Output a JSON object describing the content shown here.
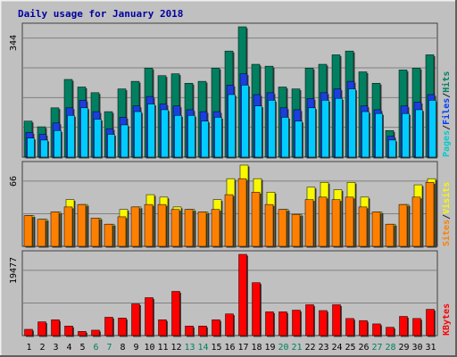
{
  "chart_data": [
    {
      "type": "bar",
      "title": "Daily usage for January 2018",
      "panel": "hits",
      "max_label": "344",
      "legend": [
        "Pages",
        "/",
        "Files",
        "/",
        "Hits"
      ],
      "legend_colors": [
        "#00cccc",
        "#202020",
        "#0040ff",
        "#202020",
        "#008060"
      ],
      "categories": [
        "1",
        "2",
        "3",
        "4",
        "5",
        "6",
        "7",
        "8",
        "9",
        "10",
        "11",
        "12",
        "13",
        "14",
        "15",
        "16",
        "17",
        "18",
        "19",
        "20",
        "21",
        "22",
        "23",
        "24",
        "25",
        "26",
        "27",
        "28",
        "29",
        "30",
        "31"
      ],
      "weekend_days": [
        6,
        7,
        13,
        14,
        20,
        21,
        27,
        28
      ],
      "ylim": [
        0,
        344
      ],
      "series": [
        {
          "name": "Hits",
          "color": "#008060",
          "values": [
            95,
            80,
            130,
            205,
            185,
            170,
            120,
            180,
            200,
            235,
            215,
            220,
            195,
            200,
            235,
            280,
            344,
            245,
            240,
            185,
            180,
            235,
            245,
            270,
            280,
            225,
            195,
            70,
            230,
            235,
            270
          ]
        },
        {
          "name": "Files",
          "color": "#1c3ee0",
          "values": [
            65,
            60,
            90,
            130,
            150,
            120,
            75,
            105,
            135,
            160,
            140,
            135,
            125,
            120,
            120,
            190,
            220,
            165,
            170,
            130,
            125,
            155,
            170,
            180,
            200,
            135,
            125,
            55,
            135,
            145,
            165
          ]
        },
        {
          "name": "Pages",
          "color": "#00ccff",
          "values": [
            50,
            45,
            70,
            110,
            130,
            100,
            60,
            85,
            120,
            140,
            125,
            110,
            110,
            95,
            105,
            165,
            190,
            135,
            150,
            105,
            95,
            130,
            150,
            155,
            180,
            120,
            115,
            45,
            115,
            125,
            150
          ]
        }
      ]
    },
    {
      "type": "bar",
      "panel": "visits",
      "max_label": "66",
      "legend": [
        "Sites",
        "/",
        "Visits"
      ],
      "legend_colors": [
        "#ff8000",
        "#202020",
        "#f8f800"
      ],
      "ylim": [
        0,
        66
      ],
      "series": [
        {
          "name": "Visits",
          "color": "#f8f800",
          "values": [
            25,
            22,
            28,
            38,
            34,
            23,
            18,
            30,
            32,
            42,
            40,
            32,
            30,
            28,
            38,
            55,
            66,
            55,
            44,
            30,
            26,
            48,
            52,
            46,
            52,
            40,
            28,
            18,
            34,
            50,
            55
          ]
        },
        {
          "name": "Sites",
          "color": "#ff8000",
          "values": [
            25,
            22,
            28,
            32,
            34,
            23,
            18,
            24,
            32,
            34,
            34,
            30,
            30,
            28,
            30,
            42,
            55,
            44,
            34,
            30,
            26,
            38,
            40,
            38,
            40,
            32,
            28,
            18,
            34,
            40,
            52
          ]
        }
      ]
    },
    {
      "type": "bar",
      "panel": "kbytes",
      "max_label": "19477",
      "legend": [
        "KBytes"
      ],
      "legend_colors": [
        "#ff0000"
      ],
      "ylim": [
        0,
        19477
      ],
      "series": [
        {
          "name": "KBytes",
          "color": "#ff0000",
          "values": [
            1500,
            3300,
            3800,
            2300,
            1000,
            1300,
            4400,
            4200,
            7600,
            9100,
            3800,
            10600,
            2300,
            2300,
            3800,
            5200,
            19477,
            12700,
            5700,
            5700,
            6100,
            7400,
            6000,
            7400,
            4100,
            3600,
            2800,
            2000,
            4600,
            4100,
            6300
          ]
        }
      ]
    }
  ]
}
